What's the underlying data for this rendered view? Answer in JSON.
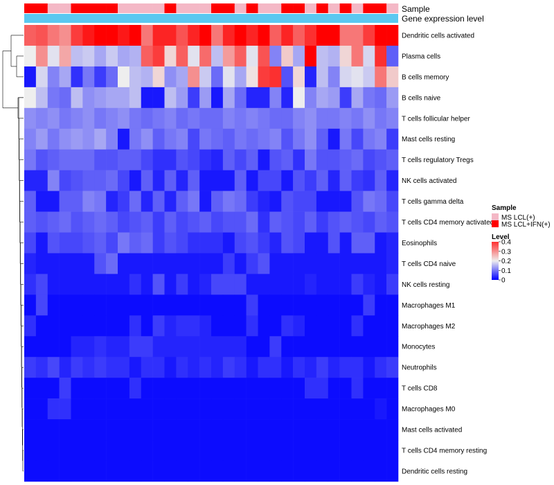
{
  "chart_data": {
    "type": "heatmap",
    "title": "",
    "value_range": [
      0,
      0.4
    ],
    "rows": [
      "Dendritic cells activated",
      "Plasma cells",
      "B cells memory",
      "B cells naive",
      "T cells follicular helper",
      "Mast cells resting",
      "T cells regulatory  Tregs",
      "NK cells activated",
      "T cells gamma delta",
      "T cells CD4 memory activated",
      "Eosinophils",
      "T cells CD4 naive",
      "NK cells resting",
      "Macrophages M1",
      "Macrophages M2",
      "Monocytes",
      "Neutrophils",
      "T cells CD8",
      "Macrophages M0",
      "Mast cells activated",
      "T cells CD4 memory resting",
      "Dendritic cells resting"
    ],
    "sample_annotation": {
      "label": "Sample",
      "levels": [
        "MS LCL(+)",
        "MS LCL+IFN(+)"
      ],
      "colors": [
        "#f4b8c6",
        "#ff0000"
      ],
      "values": [
        1,
        1,
        0,
        0,
        1,
        1,
        1,
        1,
        0,
        0,
        0,
        0,
        1,
        0,
        0,
        0,
        1,
        1,
        0,
        1,
        0,
        0,
        1,
        1,
        0,
        1,
        0,
        1,
        0,
        1,
        1,
        0
      ]
    },
    "gene_annotation": {
      "label": "Gene expression level",
      "color": "#5bc8f0"
    },
    "legend": {
      "sample_title": "Sample",
      "level_title": "Level",
      "level_ticks": [
        "0.4",
        "0.3",
        "0.2",
        "0.1",
        "0"
      ],
      "placement": "right"
    },
    "values": [
      [
        0.32,
        0.33,
        0.3,
        0.28,
        0.35,
        0.38,
        0.4,
        0.4,
        0.38,
        0.4,
        0.3,
        0.37,
        0.37,
        0.33,
        0.37,
        0.4,
        0.3,
        0.37,
        0.4,
        0.37,
        0.4,
        0.32,
        0.37,
        0.32,
        0.36,
        0.4,
        0.4,
        0.3,
        0.3,
        0.35,
        0.4,
        0.4
      ],
      [
        0.2,
        0.28,
        0.19,
        0.26,
        0.16,
        0.17,
        0.14,
        0.17,
        0.14,
        0.15,
        0.32,
        0.35,
        0.22,
        0.32,
        0.19,
        0.31,
        0.16,
        0.27,
        0.32,
        0.19,
        0.33,
        0.11,
        0.23,
        0.14,
        0.4,
        0.16,
        0.15,
        0.22,
        0.3,
        0.18,
        0.36,
        0.08
      ],
      [
        0.02,
        0.18,
        0.11,
        0.14,
        0.04,
        0.1,
        0.05,
        0.09,
        0.2,
        0.16,
        0.15,
        0.22,
        0.12,
        0.14,
        0.28,
        0.17,
        0.09,
        0.19,
        0.14,
        0.21,
        0.35,
        0.36,
        0.07,
        0.22,
        0.03,
        0.16,
        0.11,
        0.18,
        0.19,
        0.17,
        0.3,
        0.23
      ],
      [
        0.2,
        0.16,
        0.1,
        0.09,
        0.16,
        0.12,
        0.13,
        0.14,
        0.14,
        0.16,
        0.02,
        0.02,
        0.16,
        0.13,
        0.05,
        0.13,
        0.02,
        0.14,
        0.09,
        0.03,
        0.03,
        0.11,
        0.03,
        0.2,
        0.11,
        0.14,
        0.13,
        0.05,
        0.14,
        0.1,
        0.09,
        0.13
      ],
      [
        0.12,
        0.11,
        0.12,
        0.1,
        0.11,
        0.12,
        0.1,
        0.11,
        0.12,
        0.1,
        0.09,
        0.1,
        0.11,
        0.09,
        0.1,
        0.09,
        0.09,
        0.11,
        0.1,
        0.11,
        0.1,
        0.09,
        0.09,
        0.11,
        0.12,
        0.1,
        0.1,
        0.11,
        0.1,
        0.12,
        0.1,
        0.11
      ],
      [
        0.11,
        0.13,
        0.1,
        0.12,
        0.13,
        0.12,
        0.14,
        0.11,
        0.02,
        0.1,
        0.12,
        0.08,
        0.1,
        0.11,
        0.06,
        0.1,
        0.09,
        0.08,
        0.1,
        0.09,
        0.1,
        0.11,
        0.07,
        0.1,
        0.12,
        0.08,
        0.02,
        0.1,
        0.06,
        0.1,
        0.11,
        0.05
      ],
      [
        0.1,
        0.07,
        0.08,
        0.09,
        0.09,
        0.09,
        0.07,
        0.07,
        0.08,
        0.08,
        0.06,
        0.04,
        0.04,
        0.07,
        0.06,
        0.04,
        0.03,
        0.08,
        0.06,
        0.08,
        0.02,
        0.07,
        0.08,
        0.04,
        0.1,
        0.07,
        0.07,
        0.08,
        0.09,
        0.06,
        0.07,
        0.08
      ],
      [
        0.03,
        0.03,
        0.11,
        0.06,
        0.07,
        0.08,
        0.08,
        0.09,
        0.06,
        0.02,
        0.08,
        0.03,
        0.08,
        0.03,
        0.08,
        0.02,
        0.02,
        0.02,
        0.08,
        0.02,
        0.06,
        0.06,
        0.02,
        0.07,
        0.05,
        0.08,
        0.03,
        0.08,
        0.05,
        0.04,
        0.08,
        0.03
      ],
      [
        0.08,
        0.02,
        0.02,
        0.08,
        0.08,
        0.11,
        0.1,
        0.03,
        0.05,
        0.09,
        0.03,
        0.08,
        0.03,
        0.08,
        0.1,
        0.02,
        0.08,
        0.1,
        0.09,
        0.05,
        0.03,
        0.02,
        0.07,
        0.06,
        0.06,
        0.02,
        0.02,
        0.02,
        0.07,
        0.1,
        0.09,
        0.06
      ],
      [
        0.08,
        0.07,
        0.08,
        0.09,
        0.07,
        0.08,
        0.09,
        0.08,
        0.06,
        0.07,
        0.08,
        0.05,
        0.08,
        0.06,
        0.07,
        0.08,
        0.06,
        0.07,
        0.07,
        0.09,
        0.04,
        0.08,
        0.07,
        0.06,
        0.08,
        0.05,
        0.07,
        0.08,
        0.07,
        0.06,
        0.08,
        0.07
      ],
      [
        0.06,
        0.02,
        0.07,
        0.06,
        0.06,
        0.07,
        0.08,
        0.06,
        0.1,
        0.08,
        0.09,
        0.05,
        0.07,
        0.06,
        0.04,
        0.04,
        0.04,
        0.02,
        0.06,
        0.07,
        0.05,
        0.03,
        0.07,
        0.06,
        0.02,
        0.02,
        0.07,
        0.02,
        0.08,
        0.08,
        0.02,
        0.03
      ],
      [
        0.03,
        0.02,
        0.02,
        0.02,
        0.02,
        0.02,
        0.07,
        0.09,
        0.02,
        0.02,
        0.02,
        0.02,
        0.02,
        0.02,
        0.02,
        0.02,
        0.02,
        0.05,
        0.02,
        0.05,
        0.07,
        0.02,
        0.02,
        0.02,
        0.02,
        0.02,
        0.02,
        0.02,
        0.02,
        0.02,
        0.02,
        0.03
      ],
      [
        0.04,
        0.06,
        0.02,
        0.02,
        0.02,
        0.02,
        0.02,
        0.02,
        0.02,
        0.04,
        0.02,
        0.07,
        0.02,
        0.05,
        0.02,
        0.03,
        0.06,
        0.06,
        0.06,
        0.02,
        0.02,
        0.02,
        0.02,
        0.02,
        0.03,
        0.02,
        0.02,
        0.02,
        0.05,
        0.03,
        0.02,
        0.05
      ],
      [
        0.01,
        0.06,
        0.01,
        0.01,
        0.01,
        0.01,
        0.01,
        0.01,
        0.01,
        0.01,
        0.01,
        0.01,
        0.01,
        0.01,
        0.01,
        0.01,
        0.01,
        0.01,
        0.01,
        0.05,
        0.01,
        0.01,
        0.01,
        0.01,
        0.01,
        0.01,
        0.01,
        0.01,
        0.01,
        0.05,
        0.01,
        0.01
      ],
      [
        0.04,
        0.01,
        0.01,
        0.01,
        0.01,
        0.01,
        0.01,
        0.01,
        0.01,
        0.04,
        0.01,
        0.05,
        0.03,
        0.04,
        0.04,
        0.03,
        0.01,
        0.01,
        0.01,
        0.04,
        0.01,
        0.01,
        0.04,
        0.03,
        0.01,
        0.01,
        0.01,
        0.01,
        0.04,
        0.01,
        0.01,
        0.01
      ],
      [
        0.01,
        0.01,
        0.01,
        0.01,
        0.03,
        0.03,
        0.04,
        0.03,
        0.03,
        0.05,
        0.05,
        0.03,
        0.03,
        0.03,
        0.03,
        0.03,
        0.03,
        0.03,
        0.03,
        0.01,
        0.01,
        0.05,
        0.01,
        0.01,
        0.01,
        0.01,
        0.01,
        0.01,
        0.01,
        0.01,
        0.01,
        0.01
      ],
      [
        0.05,
        0.04,
        0.06,
        0.03,
        0.05,
        0.04,
        0.05,
        0.04,
        0.04,
        0.02,
        0.04,
        0.04,
        0.02,
        0.04,
        0.03,
        0.04,
        0.03,
        0.05,
        0.04,
        0.02,
        0.04,
        0.04,
        0.02,
        0.04,
        0.03,
        0.05,
        0.03,
        0.04,
        0.04,
        0.02,
        0.04,
        0.05
      ],
      [
        0.01,
        0.01,
        0.01,
        0.05,
        0.01,
        0.01,
        0.01,
        0.01,
        0.01,
        0.04,
        0.01,
        0.01,
        0.01,
        0.01,
        0.01,
        0.01,
        0.01,
        0.01,
        0.01,
        0.01,
        0.01,
        0.01,
        0.01,
        0.01,
        0.04,
        0.04,
        0.01,
        0.01,
        0.04,
        0.01,
        0.01,
        0.01
      ],
      [
        0.01,
        0.01,
        0.04,
        0.04,
        0.01,
        0.01,
        0.01,
        0.01,
        0.01,
        0.01,
        0.01,
        0.01,
        0.01,
        0.01,
        0.01,
        0.01,
        0.01,
        0.01,
        0.01,
        0.01,
        0.01,
        0.01,
        0.01,
        0.01,
        0.01,
        0.01,
        0.01,
        0.01,
        0.01,
        0.01,
        0.02,
        0.01
      ],
      [
        0.01,
        0.01,
        0.01,
        0.01,
        0.01,
        0.01,
        0.01,
        0.01,
        0.01,
        0.01,
        0.01,
        0.01,
        0.01,
        0.01,
        0.01,
        0.01,
        0.01,
        0.01,
        0.01,
        0.01,
        0.01,
        0.01,
        0.01,
        0.01,
        0.01,
        0.01,
        0.01,
        0.01,
        0.01,
        0.01,
        0.01,
        0.01
      ],
      [
        0.01,
        0.01,
        0.01,
        0.01,
        0.01,
        0.01,
        0.01,
        0.01,
        0.01,
        0.01,
        0.01,
        0.01,
        0.01,
        0.01,
        0.01,
        0.01,
        0.01,
        0.01,
        0.01,
        0.01,
        0.01,
        0.01,
        0.01,
        0.01,
        0.01,
        0.01,
        0.01,
        0.01,
        0.01,
        0.01,
        0.01,
        0.01
      ],
      [
        0.01,
        0.01,
        0.01,
        0.01,
        0.01,
        0.01,
        0.01,
        0.01,
        0.01,
        0.01,
        0.01,
        0.01,
        0.01,
        0.01,
        0.01,
        0.01,
        0.01,
        0.01,
        0.01,
        0.01,
        0.01,
        0.01,
        0.01,
        0.01,
        0.01,
        0.01,
        0.01,
        0.01,
        0.01,
        0.01,
        0.01,
        0.01
      ]
    ]
  }
}
